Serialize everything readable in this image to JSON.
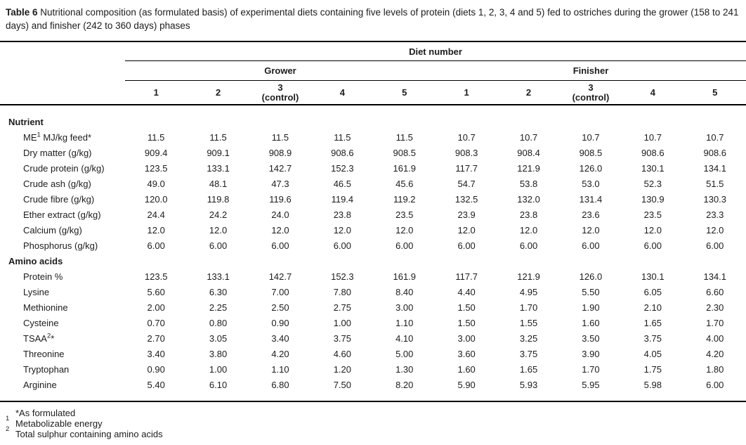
{
  "title": {
    "label": "Table 6",
    "text": " Nutritional composition (as formulated basis) of experimental diets containing five levels of protein (diets 1, 2, 3, 4 and 5) fed to ostriches during the grower (158 to 241 days) and finisher (242 to 360 days) phases"
  },
  "table": {
    "top_header": "Diet number",
    "phase_groups": [
      "Grower",
      "Finisher"
    ],
    "diet_cols": [
      {
        "num": "1",
        "sub": ""
      },
      {
        "num": "2",
        "sub": ""
      },
      {
        "num": "3",
        "sub": "(control)"
      },
      {
        "num": "4",
        "sub": ""
      },
      {
        "num": "5",
        "sub": ""
      },
      {
        "num": "1",
        "sub": ""
      },
      {
        "num": "2",
        "sub": ""
      },
      {
        "num": "3",
        "sub": "(control)"
      },
      {
        "num": "4",
        "sub": ""
      },
      {
        "num": "5",
        "sub": ""
      }
    ],
    "sections": [
      {
        "name": "Nutrient",
        "rows": [
          {
            "pre": "ME",
            "sup": "1",
            "post": " MJ/kg feed*",
            "values": [
              "11.5",
              "11.5",
              "11.5",
              "11.5",
              "11.5",
              "10.7",
              "10.7",
              "10.7",
              "10.7",
              "10.7"
            ]
          },
          {
            "pre": "Dry matter (g/kg)",
            "sup": "",
            "post": "",
            "values": [
              "909.4",
              "909.1",
              "908.9",
              "908.6",
              "908.5",
              "908.3",
              "908.4",
              "908.5",
              "908.6",
              "908.6"
            ]
          },
          {
            "pre": "Crude protein (g/kg)",
            "sup": "",
            "post": "",
            "values": [
              "123.5",
              "133.1",
              "142.7",
              "152.3",
              "161.9",
              "117.7",
              "121.9",
              "126.0",
              "130.1",
              "134.1"
            ]
          },
          {
            "pre": "Crude ash (g/kg)",
            "sup": "",
            "post": "",
            "values": [
              "49.0",
              "48.1",
              "47.3",
              "46.5",
              "45.6",
              "54.7",
              "53.8",
              "53.0",
              "52.3",
              "51.5"
            ]
          },
          {
            "pre": "Crude fibre (g/kg)",
            "sup": "",
            "post": "",
            "values": [
              "120.0",
              "119.8",
              "119.6",
              "119.4",
              "119.2",
              "132.5",
              "132.0",
              "131.4",
              "130.9",
              "130.3"
            ]
          },
          {
            "pre": "Ether extract (g/kg)",
            "sup": "",
            "post": "",
            "values": [
              "24.4",
              "24.2",
              "24.0",
              "23.8",
              "23.5",
              "23.9",
              "23.8",
              "23.6",
              "23.5",
              "23.3"
            ]
          },
          {
            "pre": "Calcium (g/kg)",
            "sup": "",
            "post": "",
            "values": [
              "12.0",
              "12.0",
              "12.0",
              "12.0",
              "12.0",
              "12.0",
              "12.0",
              "12.0",
              "12.0",
              "12.0"
            ]
          },
          {
            "pre": "Phosphorus (g/kg)",
            "sup": "",
            "post": "",
            "values": [
              "6.00",
              "6.00",
              "6.00",
              "6.00",
              "6.00",
              "6.00",
              "6.00",
              "6.00",
              "6.00",
              "6.00"
            ]
          }
        ]
      },
      {
        "name": "Amino acids",
        "rows": [
          {
            "pre": "Protein %",
            "sup": "",
            "post": "",
            "values": [
              "123.5",
              "133.1",
              "142.7",
              "152.3",
              "161.9",
              "117.7",
              "121.9",
              "126.0",
              "130.1",
              "134.1"
            ]
          },
          {
            "pre": "Lysine",
            "sup": "",
            "post": "",
            "values": [
              "5.60",
              "6.30",
              "7.00",
              "7.80",
              "8.40",
              "4.40",
              "4.95",
              "5.50",
              "6.05",
              "6.60"
            ]
          },
          {
            "pre": "Methionine",
            "sup": "",
            "post": "",
            "values": [
              "2.00",
              "2.25",
              "2.50",
              "2.75",
              "3.00",
              "1.50",
              "1.70",
              "1.90",
              "2.10",
              "2.30"
            ]
          },
          {
            "pre": "Cysteine",
            "sup": "",
            "post": "",
            "values": [
              "0.70",
              "0.80",
              "0.90",
              "1.00",
              "1.10",
              "1.50",
              "1.55",
              "1.60",
              "1.65",
              "1.70"
            ]
          },
          {
            "pre": "TSAA",
            "sup": "2",
            "post": "*",
            "values": [
              "2.70",
              "3.05",
              "3.40",
              "3.75",
              "4.10",
              "3.00",
              "3.25",
              "3.50",
              "3.75",
              "4.00"
            ]
          },
          {
            "pre": "Threonine",
            "sup": "",
            "post": "",
            "values": [
              "3.40",
              "3.80",
              "4.20",
              "4.60",
              "5.00",
              "3.60",
              "3.75",
              "3.90",
              "4.05",
              "4.20"
            ]
          },
          {
            "pre": "Tryptophan",
            "sup": "",
            "post": "",
            "values": [
              "0.90",
              "1.00",
              "1.10",
              "1.20",
              "1.30",
              "1.60",
              "1.65",
              "1.70",
              "1.75",
              "1.80"
            ]
          },
          {
            "pre": "Arginine",
            "sup": "",
            "post": "",
            "values": [
              "5.40",
              "6.10",
              "6.80",
              "7.50",
              "8.20",
              "5.90",
              "5.93",
              "5.95",
              "5.98",
              "6.00"
            ]
          }
        ]
      }
    ]
  },
  "footnotes": [
    {
      "sup": "",
      "text": "*As formulated"
    },
    {
      "sup": "1",
      "text": "Metabolizable energy"
    },
    {
      "sup": "2",
      "text": "Total sulphur containing amino acids"
    }
  ],
  "colors": {
    "text": "#1c1c1c",
    "rule": "#000000",
    "background": "#ffffff"
  }
}
